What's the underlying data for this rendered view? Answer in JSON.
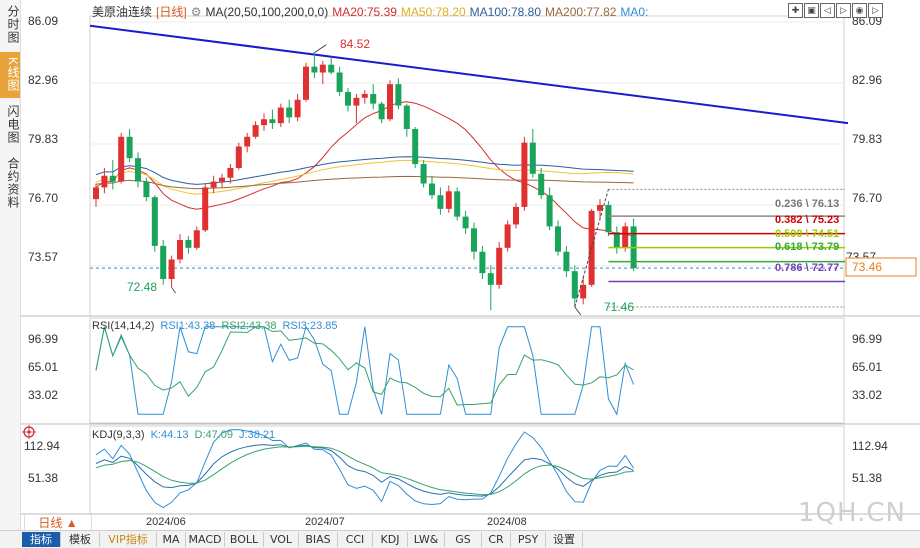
{
  "left_tabs": [
    {
      "label": "分时图",
      "active": false
    },
    {
      "label": "K线图",
      "active": true
    },
    {
      "label": "闪电图",
      "active": false
    },
    {
      "label": "合约资料",
      "active": false
    }
  ],
  "info": {
    "symbol": "美原油连续",
    "period_tag": "[日线]",
    "ma_label": "MA(20,50,100,200,0,0)",
    "ma20": "MA20:75.39",
    "ma50": "MA50:78.20",
    "ma100": "MA100:78.80",
    "ma200": "MA200:77.82",
    "ma0": "MA0:"
  },
  "controls": [
    "✚",
    "▣",
    "◁",
    "▷",
    "◉",
    "▷"
  ],
  "rsi": {
    "title": "RSI(14,14,2)",
    "rsi1": "RSI1:43.38",
    "rsi2": "RSI2:43.38",
    "rsi3": "RSI3:23.85"
  },
  "kdj": {
    "title": "KDJ(9,3,3)",
    "k": "K:44.13",
    "d": "D:47.09",
    "j": "J:38.21"
  },
  "period_button": "日线 ▲",
  "bottom_tabs": [
    "指标",
    "模板",
    "VIP指标",
    "MA",
    "MACD",
    "BOLL",
    "VOL",
    "BIAS",
    "CCI",
    "KDJ",
    "LW&",
    "GS",
    "CR",
    "PSY",
    "设置"
  ],
  "watermark": "1QH.CN",
  "price_axis": {
    "left_ticks": [
      "86.09",
      "82.96",
      "79.83",
      "76.70",
      "73.57"
    ],
    "right_ticks": [
      "86.09",
      "82.96",
      "79.83",
      "76.70",
      "73.57"
    ],
    "current_price_label": "73.46"
  },
  "rsi_axis": {
    "ticks": [
      "96.99",
      "65.01",
      "33.02"
    ]
  },
  "kdj_axis": {
    "ticks": [
      "112.94",
      "51.38"
    ]
  },
  "date_labels": [
    "2024/06",
    "2024/07",
    "2024/08"
  ],
  "annotations": {
    "high": "84.52",
    "low_left": "72.48",
    "low_right": "71.46"
  },
  "fib_levels": [
    {
      "label": "0.236 \\ 76.13",
      "price": 76.13,
      "color": "#888888"
    },
    {
      "label": "0.382 \\ 75.23",
      "price": 75.23,
      "color": "#cc0000"
    },
    {
      "label": "0.500 \\ 74.51",
      "price": 74.51,
      "color": "#99cc00"
    },
    {
      "label": "0.618 \\ 73.79",
      "price": 73.79,
      "color": "#33aa33"
    },
    {
      "label": "0.786 \\ 72.77",
      "price": 72.77,
      "color": "#7a3db8"
    }
  ],
  "colors": {
    "up": "#e0302f",
    "down": "#1aa35a",
    "ma20": "#d22f2f",
    "ma50": "#f2c232",
    "ma100": "#2e5f9a",
    "ma200": "#9a6a3a",
    "trend": "#1b1bcc"
  },
  "chart_data": {
    "type": "candlestick",
    "ylim": [
      71.0,
      86.4
    ],
    "candles": [
      [
        77.0,
        77.8,
        76.6,
        77.6
      ],
      [
        77.6,
        78.6,
        77.3,
        78.2
      ],
      [
        78.2,
        79.0,
        77.5,
        77.9
      ],
      [
        77.9,
        80.4,
        77.8,
        80.2
      ],
      [
        80.2,
        80.6,
        78.9,
        79.1
      ],
      [
        79.1,
        79.4,
        77.6,
        77.9
      ],
      [
        77.9,
        78.1,
        76.9,
        77.1
      ],
      [
        77.1,
        77.2,
        74.3,
        74.6
      ],
      [
        74.6,
        74.9,
        72.6,
        72.9
      ],
      [
        72.9,
        74.1,
        72.48,
        73.9
      ],
      [
        73.9,
        75.2,
        73.7,
        74.9
      ],
      [
        74.9,
        75.1,
        74.2,
        74.5
      ],
      [
        74.5,
        75.6,
        74.4,
        75.4
      ],
      [
        75.4,
        77.8,
        75.3,
        77.6
      ],
      [
        77.6,
        78.2,
        77.3,
        77.9
      ],
      [
        77.9,
        78.3,
        77.6,
        78.1
      ],
      [
        78.1,
        78.8,
        77.8,
        78.6
      ],
      [
        78.6,
        79.9,
        78.5,
        79.7
      ],
      [
        79.7,
        80.4,
        79.4,
        80.2
      ],
      [
        80.2,
        81.0,
        80.1,
        80.8
      ],
      [
        80.8,
        81.4,
        80.5,
        81.1
      ],
      [
        81.1,
        81.6,
        80.6,
        80.9
      ],
      [
        80.9,
        81.9,
        80.7,
        81.7
      ],
      [
        81.7,
        82.1,
        80.9,
        81.2
      ],
      [
        81.2,
        82.4,
        81.0,
        82.1
      ],
      [
        82.1,
        84.0,
        82.0,
        83.8
      ],
      [
        83.8,
        84.52,
        83.2,
        83.5
      ],
      [
        83.5,
        84.1,
        82.9,
        83.9
      ],
      [
        83.9,
        84.3,
        83.4,
        83.5
      ],
      [
        83.5,
        83.8,
        82.3,
        82.5
      ],
      [
        82.5,
        82.7,
        81.5,
        81.8
      ],
      [
        81.8,
        82.4,
        80.9,
        82.2
      ],
      [
        82.2,
        82.6,
        81.9,
        82.4
      ],
      [
        82.4,
        82.9,
        81.6,
        81.9
      ],
      [
        81.9,
        82.0,
        80.9,
        81.1
      ],
      [
        81.1,
        83.1,
        81.0,
        82.9
      ],
      [
        82.9,
        83.2,
        81.6,
        81.8
      ],
      [
        81.8,
        81.9,
        80.2,
        80.6
      ],
      [
        80.6,
        80.7,
        78.6,
        78.8
      ],
      [
        78.8,
        79.0,
        77.6,
        77.8
      ],
      [
        77.8,
        78.2,
        77.0,
        77.2
      ],
      [
        77.2,
        77.6,
        76.2,
        76.5
      ],
      [
        76.5,
        77.7,
        76.3,
        77.4
      ],
      [
        77.4,
        77.6,
        75.9,
        76.1
      ],
      [
        76.1,
        76.4,
        75.2,
        75.5
      ],
      [
        75.5,
        75.8,
        73.9,
        74.3
      ],
      [
        74.3,
        74.6,
        72.9,
        73.2
      ],
      [
        73.2,
        73.6,
        71.3,
        72.6
      ],
      [
        72.6,
        74.8,
        72.4,
        74.5
      ],
      [
        74.5,
        75.9,
        74.3,
        75.7
      ],
      [
        75.7,
        76.8,
        75.5,
        76.6
      ],
      [
        76.6,
        80.2,
        76.4,
        79.9
      ],
      [
        79.9,
        80.6,
        78.1,
        78.3
      ],
      [
        78.3,
        78.6,
        77.0,
        77.2
      ],
      [
        77.2,
        77.6,
        75.4,
        75.6
      ],
      [
        75.6,
        75.9,
        74.1,
        74.3
      ],
      [
        74.3,
        74.6,
        73.0,
        73.3
      ],
      [
        73.3,
        73.6,
        71.46,
        71.9
      ],
      [
        71.9,
        73.0,
        71.6,
        72.6
      ],
      [
        72.6,
        76.5,
        72.5,
        76.4
      ],
      [
        76.4,
        77.0,
        75.9,
        76.7
      ],
      [
        76.7,
        76.9,
        75.1,
        75.3
      ],
      [
        75.3,
        75.6,
        74.2,
        74.5
      ],
      [
        74.5,
        75.8,
        74.3,
        75.6
      ],
      [
        75.6,
        76.0,
        73.3,
        73.46
      ]
    ]
  }
}
